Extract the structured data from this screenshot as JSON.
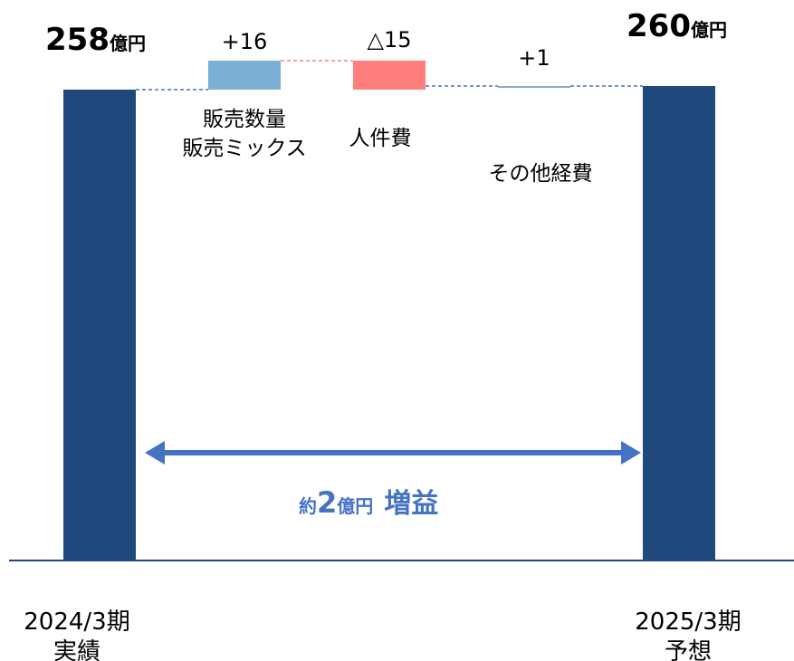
{
  "chart_data": {
    "type": "bar",
    "categories": [
      "2024/3期 実績",
      "販売数量 販売ミックス",
      "人件費",
      "その他経費",
      "2025/3期 予想"
    ],
    "values": [
      258,
      16,
      -15,
      1,
      260
    ],
    "unit": "億円",
    "totals": {
      "start": {
        "number": "258",
        "unit": "億円",
        "value": 258
      },
      "end": {
        "number": "260",
        "unit": "億円",
        "value": 260
      }
    },
    "steps": [
      {
        "id": "volume",
        "delta": 16,
        "label": "+16",
        "name_lines": [
          "販売数量",
          "販売ミックス"
        ],
        "color": "#7bafd4"
      },
      {
        "id": "personnel",
        "delta": -15,
        "label": "△15",
        "name_lines": [
          "人件費"
        ],
        "color": "#ff7f7f"
      },
      {
        "id": "other",
        "delta": 1,
        "label": "+1",
        "name_lines": [
          "その他経費"
        ],
        "color": "#7bafd4"
      }
    ],
    "period_labels": {
      "start": [
        "2024/3期",
        "実績"
      ],
      "end": [
        "2025/3期",
        "予想"
      ]
    },
    "summary": {
      "prefix": "約",
      "number": "2",
      "unit": "億円",
      "word": "増益"
    }
  },
  "colors": {
    "total_bar": "#1f497d",
    "increase": "#7bafd4",
    "decrease": "#ff7f7f",
    "summary": "#4472c4",
    "baseline": "#1f497d",
    "connector_blue": "#4472c4",
    "connector_red": "#ff7f7f"
  }
}
